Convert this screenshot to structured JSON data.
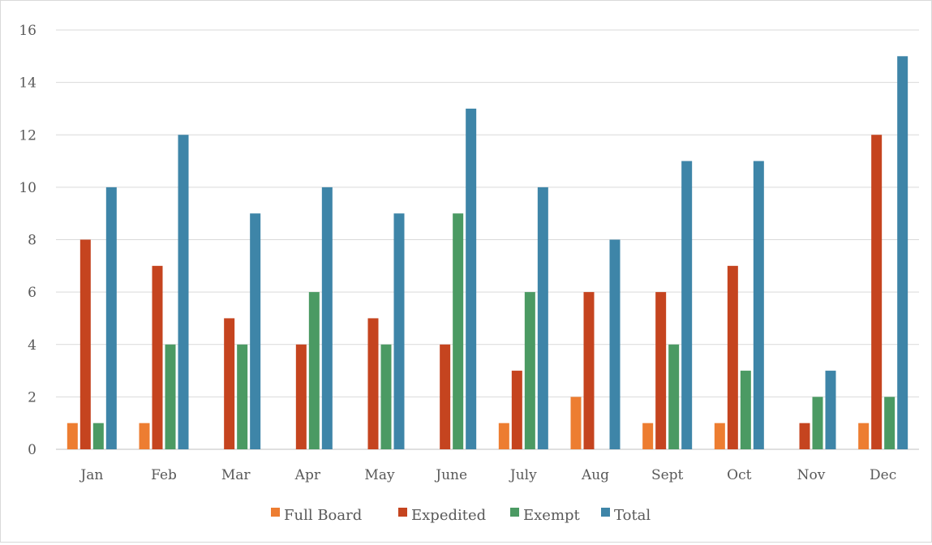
{
  "chart_data": {
    "type": "bar",
    "title": "",
    "xlabel": "",
    "ylabel": "",
    "ylim": [
      0,
      16
    ],
    "yticks": [
      0,
      2,
      4,
      6,
      8,
      10,
      12,
      14,
      16
    ],
    "grid": true,
    "legend_position": "bottom",
    "categories": [
      "Jan",
      "Feb",
      "Mar",
      "Apr",
      "May",
      "June",
      "July",
      "Aug",
      "Sept",
      "Oct",
      "Nov",
      "Dec"
    ],
    "series": [
      {
        "name": "Full Board",
        "color": "#ED7D31",
        "values": [
          1,
          1,
          0,
          0,
          0,
          0,
          1,
          2,
          1,
          1,
          0,
          1
        ]
      },
      {
        "name": "Expedited",
        "color": "#C5441F",
        "values": [
          8,
          7,
          5,
          4,
          5,
          4,
          3,
          6,
          6,
          7,
          1,
          12
        ]
      },
      {
        "name": "Exempt",
        "color": "#4B9A63",
        "values": [
          1,
          4,
          4,
          6,
          4,
          9,
          6,
          0,
          4,
          3,
          2,
          2
        ]
      },
      {
        "name": "Total",
        "color": "#3E85A8",
        "values": [
          10,
          12,
          9,
          10,
          9,
          13,
          10,
          8,
          11,
          11,
          3,
          15
        ]
      }
    ]
  }
}
